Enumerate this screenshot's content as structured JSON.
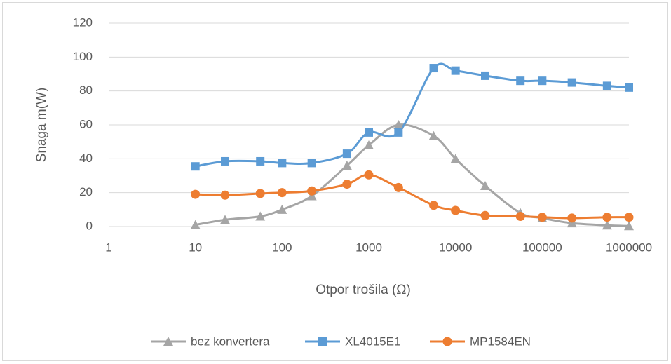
{
  "chart_data": {
    "type": "line",
    "x_label": "Otpor trošila (Ω)",
    "y_label": "Snaga m(W)",
    "x": [
      10,
      22,
      56,
      100,
      220,
      560,
      1000,
      2200,
      5600,
      10000,
      22000,
      56000,
      100000,
      220000,
      560000,
      1000000
    ],
    "series": [
      {
        "name": "bez konvertera",
        "color": "#a5a5a5",
        "marker": "triangle",
        "values": [
          1,
          4,
          6,
          10,
          18,
          36,
          48,
          60,
          53.5,
          40,
          24,
          8,
          5,
          2,
          0.7,
          0.3
        ]
      },
      {
        "name": "XL4015E1",
        "color": "#5b9bd5",
        "marker": "square",
        "values": [
          35.5,
          38.5,
          38.5,
          37.5,
          37.5,
          43,
          55.5,
          55.5,
          93.5,
          92,
          89,
          86,
          86,
          85,
          83,
          82
        ]
      },
      {
        "name": "MP1584EN",
        "color": "#ed7d31",
        "marker": "circle",
        "values": [
          19,
          18.5,
          19.5,
          20,
          21,
          25,
          30.5,
          23,
          12.5,
          9.5,
          6.5,
          6,
          5.5,
          5,
          5.5,
          5.5
        ]
      }
    ],
    "xlim": [
      1,
      1000000
    ],
    "xticks": [
      1,
      10,
      100,
      1000,
      10000,
      100000,
      1000000
    ],
    "xscale": "log",
    "ylim": [
      0,
      120
    ],
    "yticks": [
      0,
      20,
      40,
      60,
      80,
      100,
      120
    ],
    "grid": true,
    "legend": "bottom"
  }
}
